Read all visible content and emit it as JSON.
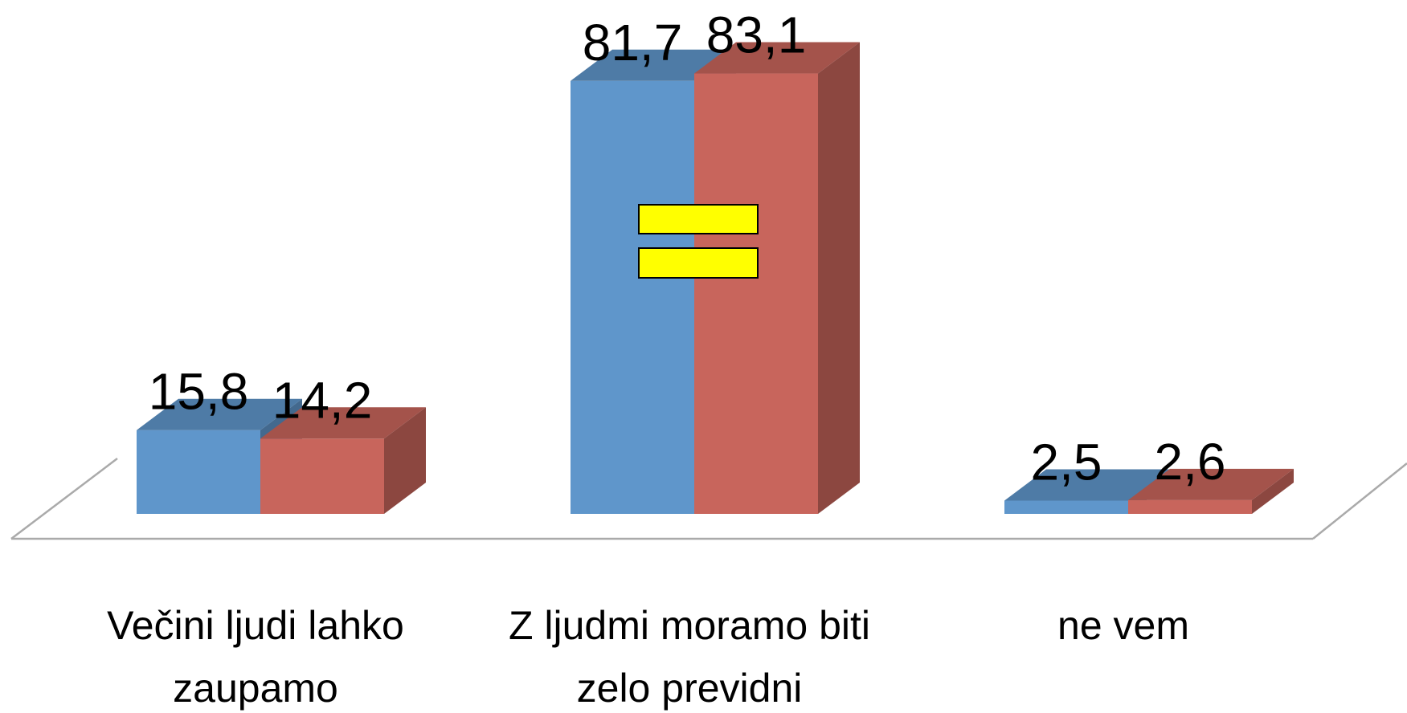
{
  "chart_data": {
    "type": "bar3d",
    "categories": [
      "Večini ljudi lahko zaupamo",
      "Z ljudmi moramo biti zelo previdni",
      "ne vem"
    ],
    "series": [
      {
        "color": "#5f96cb",
        "values": [
          15.8,
          81.7,
          2.5
        ],
        "value_labels": [
          "15,8",
          "81,7",
          "2,5"
        ]
      },
      {
        "color": "#c8655c",
        "values": [
          14.2,
          83.1,
          2.6
        ],
        "value_labels": [
          "14,2",
          "83,1",
          "2,6"
        ]
      }
    ]
  }
}
